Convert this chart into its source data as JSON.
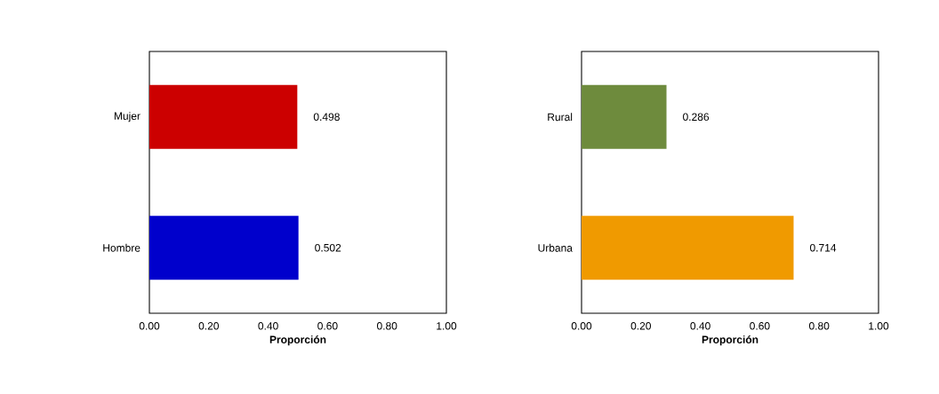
{
  "chart_data": [
    {
      "type": "bar",
      "orientation": "horizontal",
      "categories": [
        "Mujer",
        "Hombre"
      ],
      "values": [
        0.498,
        0.502
      ],
      "colors": [
        "#cc0000",
        "#0000cc"
      ],
      "xlabel": "Proporción",
      "xlim": [
        0,
        1
      ],
      "xticks": [
        {
          "value": 0,
          "label": "0.00"
        },
        {
          "value": 0.2,
          "label": "0.20"
        },
        {
          "value": 0.4,
          "label": "0.40"
        },
        {
          "value": 0.6,
          "label": "0.60"
        },
        {
          "value": 0.8,
          "label": "0.80"
        },
        {
          "value": 1,
          "label": "1.00"
        }
      ],
      "data_labels": true
    },
    {
      "type": "bar",
      "orientation": "horizontal",
      "categories": [
        "Rural",
        "Urbana"
      ],
      "values": [
        0.286,
        0.714
      ],
      "colors": [
        "#6e8b3d",
        "#f09a00"
      ],
      "xlabel": "Proporción",
      "xlim": [
        0,
        1
      ],
      "xticks": [
        {
          "value": 0,
          "label": "0.00"
        },
        {
          "value": 0.2,
          "label": "0.20"
        },
        {
          "value": 0.4,
          "label": "0.40"
        },
        {
          "value": 0.6,
          "label": "0.60"
        },
        {
          "value": 0.8,
          "label": "0.80"
        },
        {
          "value": 1,
          "label": "1.00"
        }
      ],
      "data_labels": true
    }
  ]
}
